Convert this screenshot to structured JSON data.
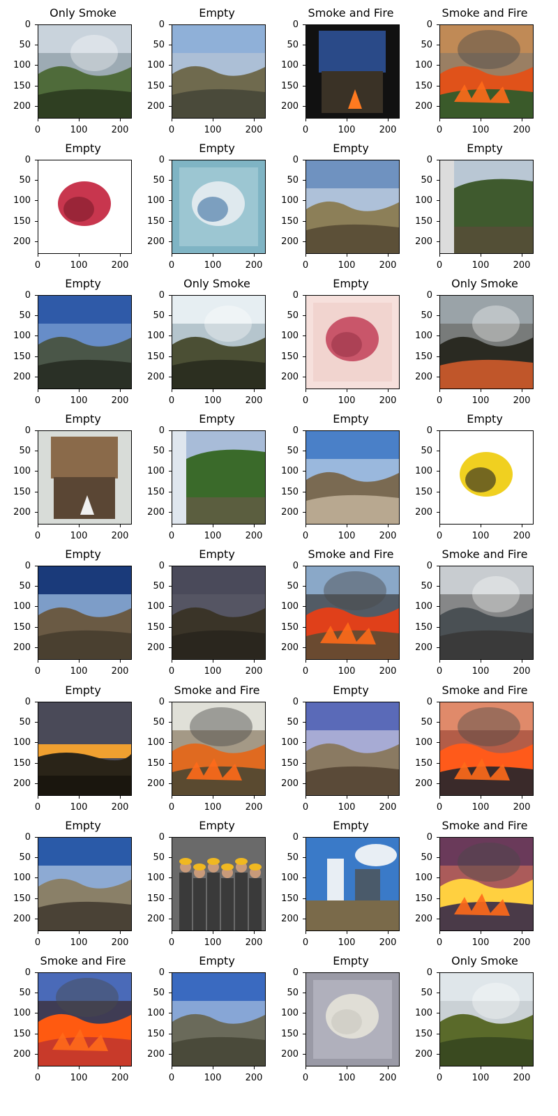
{
  "axes": {
    "yticks": [
      "0",
      "50",
      "100",
      "150",
      "200"
    ],
    "xticks": [
      "0",
      "100",
      "200"
    ]
  },
  "panels": [
    {
      "title": "Only Smoke",
      "scene": "smoke",
      "colors": [
        "#c9d3dc",
        "#8a9aa3",
        "#4f6b3a",
        "#2f3f22"
      ]
    },
    {
      "title": "Empty",
      "scene": "hills",
      "colors": [
        "#8fb0d8",
        "#b8c6d6",
        "#6f6a4e",
        "#4a4a3a"
      ]
    },
    {
      "title": "Smoke and Fire",
      "scene": "room",
      "colors": [
        "#111111",
        "#2a4a88",
        "#3a3226",
        "#ff7a20"
      ]
    },
    {
      "title": "Smoke and Fire",
      "scene": "fire",
      "colors": [
        "#c08a56",
        "#8a7a6a",
        "#e0521a",
        "#3a5a2a"
      ]
    },
    {
      "title": "Empty",
      "scene": "object",
      "colors": [
        "#ffffff",
        "#ffffff",
        "#c8364e",
        "#7c1a2a"
      ]
    },
    {
      "title": "Empty",
      "scene": "object",
      "colors": [
        "#7fb4c4",
        "#9cc6d2",
        "#dfe9ee",
        "#3a6ea0"
      ]
    },
    {
      "title": "Empty",
      "scene": "hills",
      "colors": [
        "#6f92c0",
        "#c9d6e4",
        "#8c7f58",
        "#5c5038"
      ]
    },
    {
      "title": "Empty",
      "scene": "forest",
      "colors": [
        "#b9c7d4",
        "#dcdcdc",
        "#3f5a2e",
        "#5c4a3a"
      ]
    },
    {
      "title": "Empty",
      "scene": "hills",
      "colors": [
        "#2f5aa8",
        "#7fa3d6",
        "#4a5648",
        "#2a3026"
      ]
    },
    {
      "title": "Only Smoke",
      "scene": "smoke",
      "colors": [
        "#e6eef2",
        "#9fb3bd",
        "#4b4f34",
        "#2c2f20"
      ]
    },
    {
      "title": "Empty",
      "scene": "object",
      "colors": [
        "#f6e0dc",
        "#f1d4cf",
        "#c9566a",
        "#9a3448"
      ]
    },
    {
      "title": "Only Smoke",
      "scene": "smoke",
      "colors": [
        "#9aa3a8",
        "#6a6a66",
        "#2a2a22",
        "#c0562a"
      ]
    },
    {
      "title": "Empty",
      "scene": "room",
      "colors": [
        "#d8dcd8",
        "#8a6a4a",
        "#5a4634",
        "#f0f0f0"
      ]
    },
    {
      "title": "Empty",
      "scene": "forest",
      "colors": [
        "#a8bcd8",
        "#dfe6ee",
        "#3a6a2a",
        "#6a5a48"
      ]
    },
    {
      "title": "Empty",
      "scene": "hills",
      "colors": [
        "#4a80c8",
        "#bcd0e6",
        "#7a6a52",
        "#b8a890"
      ]
    },
    {
      "title": "Empty",
      "scene": "object",
      "colors": [
        "#ffffff",
        "#ffffff",
        "#f0d020",
        "#222222"
      ]
    },
    {
      "title": "Empty",
      "scene": "hills",
      "colors": [
        "#1a3a7a",
        "#a8c8ea",
        "#6a5a44",
        "#4a4030"
      ]
    },
    {
      "title": "Empty",
      "scene": "hills",
      "colors": [
        "#4a4a5a",
        "#5a5a66",
        "#3a3428",
        "#2a261e"
      ]
    },
    {
      "title": "Smoke and Fire",
      "scene": "fire",
      "colors": [
        "#8aa8c8",
        "#3a3a3a",
        "#e0401a",
        "#6a4a30"
      ]
    },
    {
      "title": "Smoke and Fire",
      "scene": "smoke",
      "colors": [
        "#c8ccd0",
        "#6a6a6a",
        "#4a5054",
        "#3a3a3a"
      ]
    },
    {
      "title": "Empty",
      "scene": "sunset",
      "colors": [
        "#4a4a58",
        "#f0a030",
        "#2a2418",
        "#1a160e"
      ]
    },
    {
      "title": "Smoke and Fire",
      "scene": "fire",
      "colors": [
        "#e0e0d8",
        "#8a7a64",
        "#e06a20",
        "#5a4a30"
      ]
    },
    {
      "title": "Empty",
      "scene": "hills",
      "colors": [
        "#5a6ab8",
        "#c8c8e0",
        "#8a7a62",
        "#5a4a38"
      ]
    },
    {
      "title": "Smoke and Fire",
      "scene": "fire",
      "colors": [
        "#e08a6a",
        "#a04a3a",
        "#ff5a1a",
        "#3a2a2a"
      ]
    },
    {
      "title": "Empty",
      "scene": "hills",
      "colors": [
        "#2a5aa8",
        "#b8cce6",
        "#8a8068",
        "#4a4236"
      ]
    },
    {
      "title": "Empty",
      "scene": "people",
      "colors": [
        "#6a6a6a",
        "#3a3a3a",
        "#f0b820",
        "#c89a7a"
      ]
    },
    {
      "title": "Empty",
      "scene": "city",
      "colors": [
        "#3a7ac8",
        "#e8eef4",
        "#4a5a6a",
        "#7a6a4a"
      ]
    },
    {
      "title": "Smoke and Fire",
      "scene": "fire",
      "colors": [
        "#6a3a5a",
        "#c86a5a",
        "#ffd040",
        "#4a3a48"
      ]
    },
    {
      "title": "Smoke and Fire",
      "scene": "fire",
      "colors": [
        "#4a6ab8",
        "#3a2a2a",
        "#ff5a10",
        "#c83a2a"
      ]
    },
    {
      "title": "Empty",
      "scene": "hills",
      "colors": [
        "#3a6ac0",
        "#a8c0e0",
        "#6a6a5a",
        "#4a4a3a"
      ]
    },
    {
      "title": "Empty",
      "scene": "object",
      "colors": [
        "#9a9aa6",
        "#b0b0bc",
        "#e0ded6",
        "#c8c6be"
      ]
    },
    {
      "title": "Only Smoke",
      "scene": "smoke",
      "colors": [
        "#dfe6ea",
        "#c0c8cc",
        "#5a6a2a",
        "#3a4a20"
      ]
    }
  ]
}
